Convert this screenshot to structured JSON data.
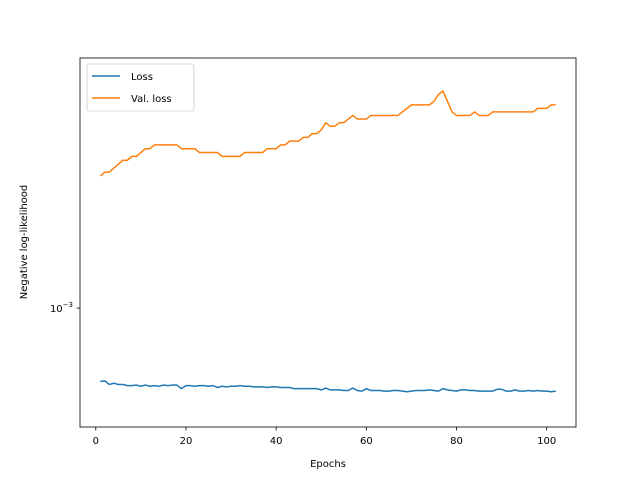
{
  "chart_data": {
    "type": "line",
    "xlabel": "Epochs",
    "ylabel": "Negative log-likelihood",
    "xlim": [
      -3.5,
      106.5
    ],
    "ylim": [
      0.000795,
      0.00162
    ],
    "yscale": "log",
    "xticks": [
      0,
      20,
      40,
      60,
      80,
      100
    ],
    "yticks": [
      {
        "value": 0.001,
        "base": "10",
        "exponent": "−3"
      }
    ],
    "grid": false,
    "legend": {
      "position": "upper left"
    },
    "series": [
      {
        "name": "Loss",
        "color": "#1f77b4",
        "points": [
          [
            1,
            0.000868
          ],
          [
            2,
            0.000869
          ],
          [
            3,
            0.000863
          ],
          [
            4,
            0.000865
          ],
          [
            5,
            0.000863
          ],
          [
            6,
            0.000863
          ],
          [
            7,
            0.000861
          ],
          [
            8,
            0.000861
          ],
          [
            9,
            0.000862
          ],
          [
            10,
            0.00086
          ],
          [
            11,
            0.000862
          ],
          [
            12,
            0.00086
          ],
          [
            13,
            0.000861
          ],
          [
            14,
            0.00086
          ],
          [
            15,
            0.000862
          ],
          [
            16,
            0.000861
          ],
          [
            17,
            0.000862
          ],
          [
            18,
            0.000862
          ],
          [
            19,
            0.000856
          ],
          [
            20,
            0.000861
          ],
          [
            21,
            0.000861
          ],
          [
            22,
            0.00086
          ],
          [
            23,
            0.000861
          ],
          [
            24,
            0.000861
          ],
          [
            25,
            0.00086
          ],
          [
            26,
            0.000861
          ],
          [
            27,
            0.000858
          ],
          [
            28,
            0.00086
          ],
          [
            29,
            0.000859
          ],
          [
            30,
            0.00086
          ],
          [
            31,
            0.00086
          ],
          [
            32,
            0.000861
          ],
          [
            33,
            0.00086
          ],
          [
            34,
            0.00086
          ],
          [
            35,
            0.000859
          ],
          [
            36,
            0.000859
          ],
          [
            37,
            0.000859
          ],
          [
            38,
            0.000858
          ],
          [
            39,
            0.000859
          ],
          [
            40,
            0.000859
          ],
          [
            41,
            0.000858
          ],
          [
            42,
            0.000858
          ],
          [
            43,
            0.000858
          ],
          [
            44,
            0.000856
          ],
          [
            45,
            0.000856
          ],
          [
            46,
            0.000856
          ],
          [
            47,
            0.000856
          ],
          [
            48,
            0.000856
          ],
          [
            49,
            0.000856
          ],
          [
            50,
            0.000854
          ],
          [
            51,
            0.000857
          ],
          [
            52,
            0.000854
          ],
          [
            53,
            0.000854
          ],
          [
            54,
            0.000854
          ],
          [
            55,
            0.000853
          ],
          [
            56,
            0.000853
          ],
          [
            57,
            0.000857
          ],
          [
            58,
            0.000853
          ],
          [
            59,
            0.000852
          ],
          [
            60,
            0.000856
          ],
          [
            61,
            0.000853
          ],
          [
            62,
            0.000853
          ],
          [
            63,
            0.000853
          ],
          [
            64,
            0.000852
          ],
          [
            65,
            0.000852
          ],
          [
            66,
            0.000853
          ],
          [
            67,
            0.000853
          ],
          [
            68,
            0.000852
          ],
          [
            69,
            0.000851
          ],
          [
            70,
            0.000852
          ],
          [
            71,
            0.000853
          ],
          [
            72,
            0.000853
          ],
          [
            73,
            0.000853
          ],
          [
            74,
            0.000854
          ],
          [
            75,
            0.000853
          ],
          [
            76,
            0.000852
          ],
          [
            77,
            0.000856
          ],
          [
            78,
            0.000854
          ],
          [
            79,
            0.000853
          ],
          [
            80,
            0.000852
          ],
          [
            81,
            0.000854
          ],
          [
            82,
            0.000854
          ],
          [
            83,
            0.000853
          ],
          [
            84,
            0.000853
          ],
          [
            85,
            0.000852
          ],
          [
            86,
            0.000852
          ],
          [
            87,
            0.000852
          ],
          [
            88,
            0.000852
          ],
          [
            89,
            0.000855
          ],
          [
            90,
            0.000855
          ],
          [
            91,
            0.000852
          ],
          [
            92,
            0.000852
          ],
          [
            93,
            0.000854
          ],
          [
            94,
            0.000852
          ],
          [
            95,
            0.000852
          ],
          [
            96,
            0.000853
          ],
          [
            97,
            0.000852
          ],
          [
            98,
            0.000853
          ],
          [
            99,
            0.000852
          ],
          [
            100,
            0.000852
          ],
          [
            101,
            0.000851
          ],
          [
            102,
            0.000852
          ]
        ]
      },
      {
        "name": "Val. loss",
        "color": "#ff7f0e",
        "points": [
          [
            1,
            0.00129
          ],
          [
            2,
            0.0013
          ],
          [
            3,
            0.0013
          ],
          [
            4,
            0.00131
          ],
          [
            5,
            0.00132
          ],
          [
            6,
            0.00133
          ],
          [
            7,
            0.00133
          ],
          [
            8,
            0.00134
          ],
          [
            9,
            0.00134
          ],
          [
            10,
            0.00135
          ],
          [
            11,
            0.00136
          ],
          [
            12,
            0.00136
          ],
          [
            13,
            0.00137
          ],
          [
            14,
            0.00137
          ],
          [
            15,
            0.00137
          ],
          [
            16,
            0.00137
          ],
          [
            17,
            0.00137
          ],
          [
            18,
            0.00137
          ],
          [
            19,
            0.00136
          ],
          [
            20,
            0.00136
          ],
          [
            21,
            0.00136
          ],
          [
            22,
            0.00136
          ],
          [
            23,
            0.00135
          ],
          [
            24,
            0.00135
          ],
          [
            25,
            0.00135
          ],
          [
            26,
            0.00135
          ],
          [
            27,
            0.00135
          ],
          [
            28,
            0.00134
          ],
          [
            29,
            0.00134
          ],
          [
            30,
            0.00134
          ],
          [
            31,
            0.00134
          ],
          [
            32,
            0.00134
          ],
          [
            33,
            0.00135
          ],
          [
            34,
            0.00135
          ],
          [
            35,
            0.00135
          ],
          [
            36,
            0.00135
          ],
          [
            37,
            0.00135
          ],
          [
            38,
            0.00136
          ],
          [
            39,
            0.00136
          ],
          [
            40,
            0.00136
          ],
          [
            41,
            0.00137
          ],
          [
            42,
            0.00137
          ],
          [
            43,
            0.00138
          ],
          [
            44,
            0.00138
          ],
          [
            45,
            0.00138
          ],
          [
            46,
            0.00139
          ],
          [
            47,
            0.00139
          ],
          [
            48,
            0.0014
          ],
          [
            49,
            0.0014
          ],
          [
            50,
            0.00141
          ],
          [
            51,
            0.00143
          ],
          [
            52,
            0.00142
          ],
          [
            53,
            0.00142
          ],
          [
            54,
            0.00143
          ],
          [
            55,
            0.00143
          ],
          [
            56,
            0.00144
          ],
          [
            57,
            0.00145
          ],
          [
            58,
            0.00144
          ],
          [
            59,
            0.00144
          ],
          [
            60,
            0.00144
          ],
          [
            61,
            0.00145
          ],
          [
            62,
            0.00145
          ],
          [
            63,
            0.00145
          ],
          [
            64,
            0.00145
          ],
          [
            65,
            0.00145
          ],
          [
            66,
            0.00145
          ],
          [
            67,
            0.00145
          ],
          [
            68,
            0.00146
          ],
          [
            69,
            0.00147
          ],
          [
            70,
            0.00148
          ],
          [
            71,
            0.00148
          ],
          [
            72,
            0.00148
          ],
          [
            73,
            0.00148
          ],
          [
            74,
            0.00148
          ],
          [
            75,
            0.00149
          ],
          [
            76,
            0.00151
          ],
          [
            77,
            0.00152
          ],
          [
            78,
            0.00149
          ],
          [
            79,
            0.00146
          ],
          [
            80,
            0.00145
          ],
          [
            81,
            0.00145
          ],
          [
            82,
            0.00145
          ],
          [
            83,
            0.00145
          ],
          [
            84,
            0.00146
          ],
          [
            85,
            0.00145
          ],
          [
            86,
            0.00145
          ],
          [
            87,
            0.00145
          ],
          [
            88,
            0.00146
          ],
          [
            89,
            0.00146
          ],
          [
            90,
            0.00146
          ],
          [
            91,
            0.00146
          ],
          [
            92,
            0.00146
          ],
          [
            93,
            0.00146
          ],
          [
            94,
            0.00146
          ],
          [
            95,
            0.00146
          ],
          [
            96,
            0.00146
          ],
          [
            97,
            0.00146
          ],
          [
            98,
            0.00147
          ],
          [
            99,
            0.00147
          ],
          [
            100,
            0.00147
          ],
          [
            101,
            0.00148
          ],
          [
            102,
            0.00148
          ]
        ]
      }
    ]
  }
}
